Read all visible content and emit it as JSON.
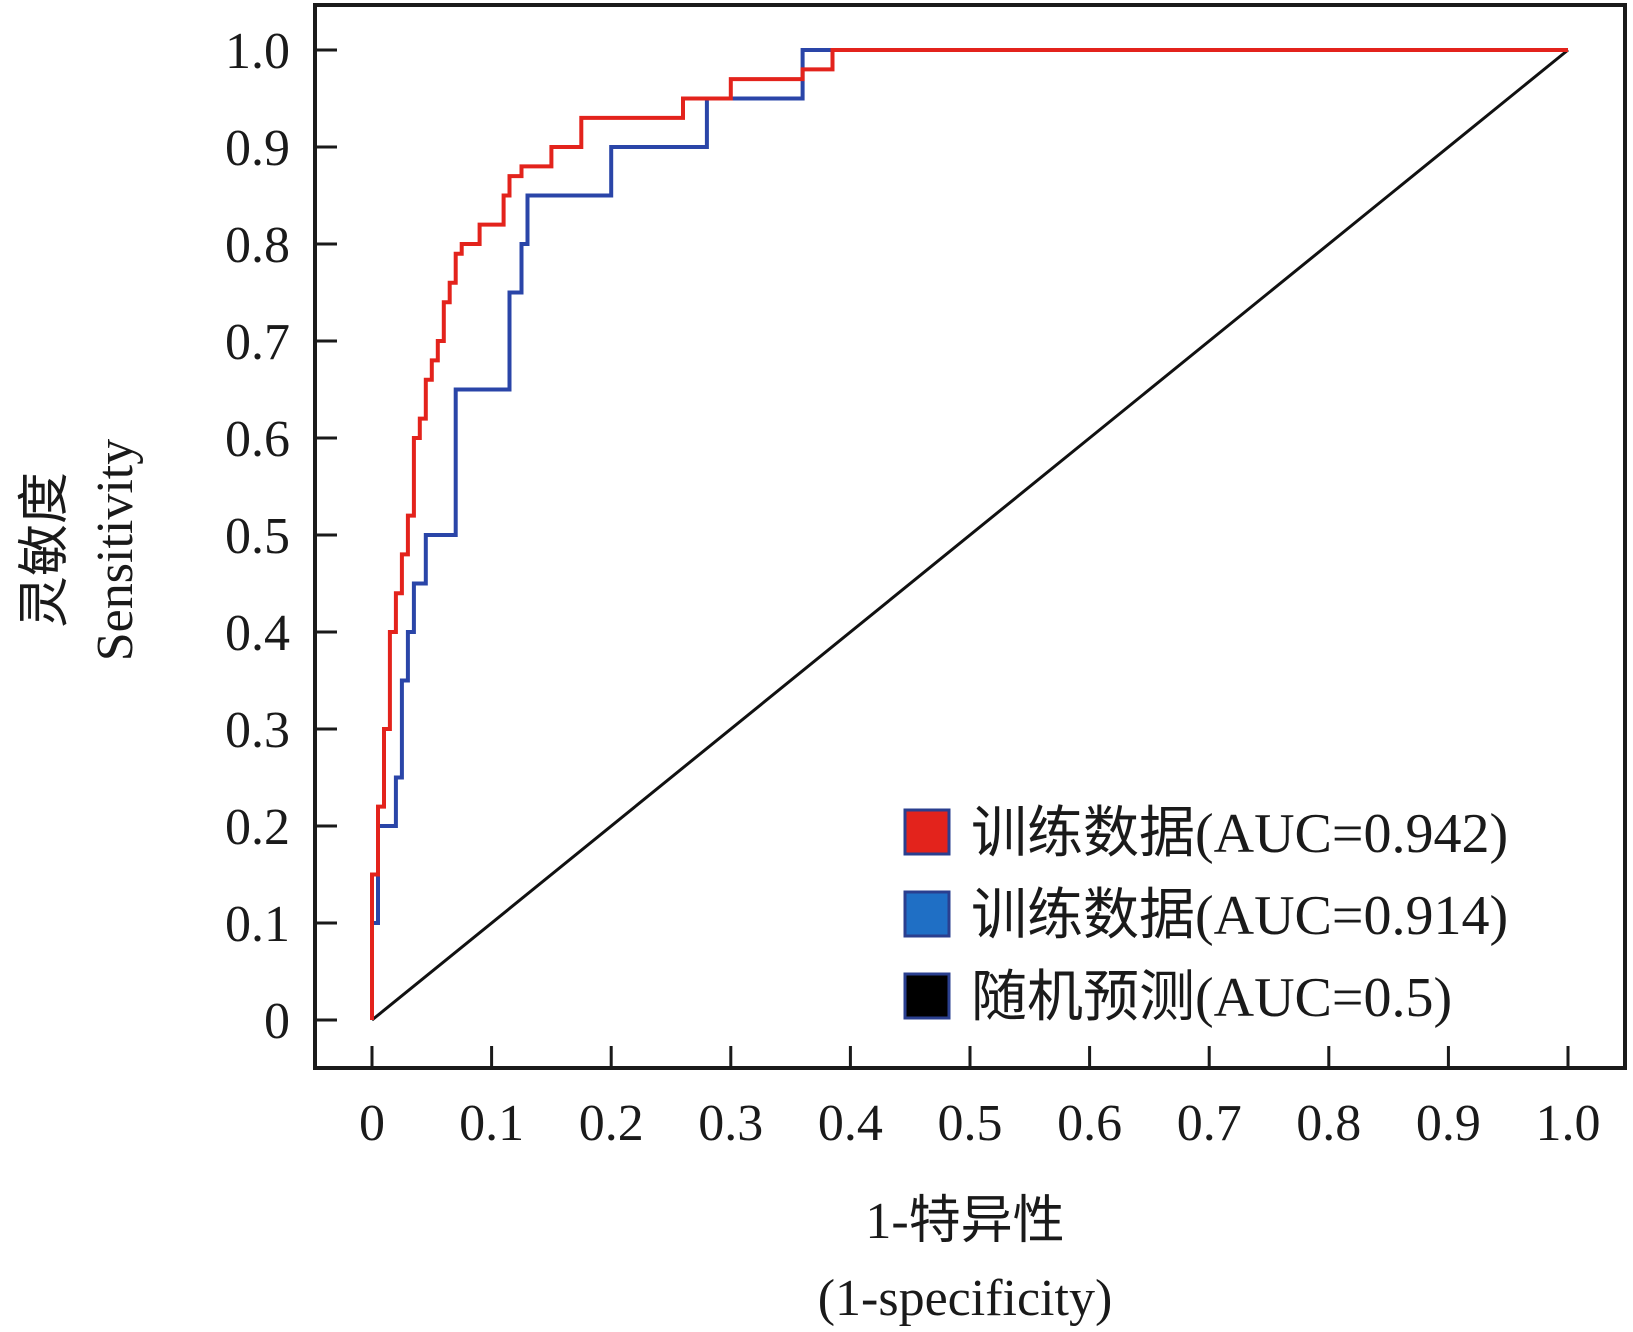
{
  "chart_data": {
    "type": "line",
    "title": "",
    "xlabel_line1": "1-特异性",
    "xlabel_line2": "(1-specificity)",
    "ylabel_line1": "灵敏度",
    "ylabel_line2": "Sensitivity",
    "xlim": [
      0,
      1.0
    ],
    "ylim": [
      0,
      1.0
    ],
    "x_ticks": [
      "0",
      "0.1",
      "0.2",
      "0.3",
      "0.4",
      "0.5",
      "0.6",
      "0.7",
      "0.8",
      "0.9",
      "1.0"
    ],
    "y_ticks": [
      "0",
      "0.1",
      "0.2",
      "0.3",
      "0.4",
      "0.5",
      "0.6",
      "0.7",
      "0.8",
      "0.9",
      "1.0"
    ],
    "legend_position": "bottom-right",
    "grid": false,
    "series": [
      {
        "name": "训练数据(AUC=0.942)",
        "color": "#e3231c",
        "legend_color": "#e3231c",
        "x": [
          0,
          0,
          0.005,
          0.005,
          0.01,
          0.01,
          0.015,
          0.015,
          0.02,
          0.02,
          0.025,
          0.025,
          0.03,
          0.03,
          0.035,
          0.035,
          0.04,
          0.04,
          0.045,
          0.045,
          0.05,
          0.05,
          0.055,
          0.055,
          0.06,
          0.06,
          0.065,
          0.065,
          0.07,
          0.07,
          0.075,
          0.075,
          0.09,
          0.09,
          0.1,
          0.1,
          0.11,
          0.11,
          0.115,
          0.115,
          0.12,
          0.12,
          0.125,
          0.125,
          0.13,
          0.13,
          0.15,
          0.15,
          0.16,
          0.16,
          0.175,
          0.175,
          0.26,
          0.26,
          0.3,
          0.3,
          0.36,
          0.36,
          0.385,
          0.385,
          1.0
        ],
        "y": [
          0,
          0.15,
          0.15,
          0.22,
          0.22,
          0.3,
          0.3,
          0.4,
          0.4,
          0.44,
          0.44,
          0.48,
          0.48,
          0.52,
          0.52,
          0.6,
          0.6,
          0.62,
          0.62,
          0.66,
          0.66,
          0.68,
          0.68,
          0.7,
          0.7,
          0.74,
          0.74,
          0.76,
          0.76,
          0.79,
          0.79,
          0.8,
          0.8,
          0.82,
          0.82,
          0.82,
          0.82,
          0.85,
          0.85,
          0.87,
          0.87,
          0.87,
          0.87,
          0.88,
          0.88,
          0.88,
          0.88,
          0.9,
          0.9,
          0.9,
          0.9,
          0.93,
          0.93,
          0.95,
          0.95,
          0.97,
          0.97,
          0.98,
          0.98,
          1.0,
          1.0
        ]
      },
      {
        "name": "训练数据(AUC=0.914)",
        "color": "#2a45a8",
        "legend_color": "#1f6fc5",
        "x": [
          0,
          0,
          0.005,
          0.005,
          0.01,
          0.01,
          0.02,
          0.02,
          0.025,
          0.025,
          0.03,
          0.03,
          0.035,
          0.035,
          0.04,
          0.04,
          0.045,
          0.045,
          0.07,
          0.07,
          0.115,
          0.115,
          0.125,
          0.125,
          0.13,
          0.13,
          0.2,
          0.2,
          0.28,
          0.28,
          0.36,
          0.36,
          1.0
        ],
        "y": [
          0,
          0.1,
          0.1,
          0.2,
          0.2,
          0.2,
          0.2,
          0.25,
          0.25,
          0.35,
          0.35,
          0.4,
          0.4,
          0.45,
          0.45,
          0.45,
          0.45,
          0.5,
          0.5,
          0.65,
          0.65,
          0.75,
          0.75,
          0.8,
          0.8,
          0.85,
          0.85,
          0.9,
          0.9,
          0.95,
          0.95,
          1.0,
          1.0
        ]
      },
      {
        "name": "随机预测(AUC=0.5)",
        "color": "#111111",
        "legend_color": "#000000",
        "x": [
          0,
          1.0
        ],
        "y": [
          0,
          1.0
        ]
      }
    ]
  }
}
